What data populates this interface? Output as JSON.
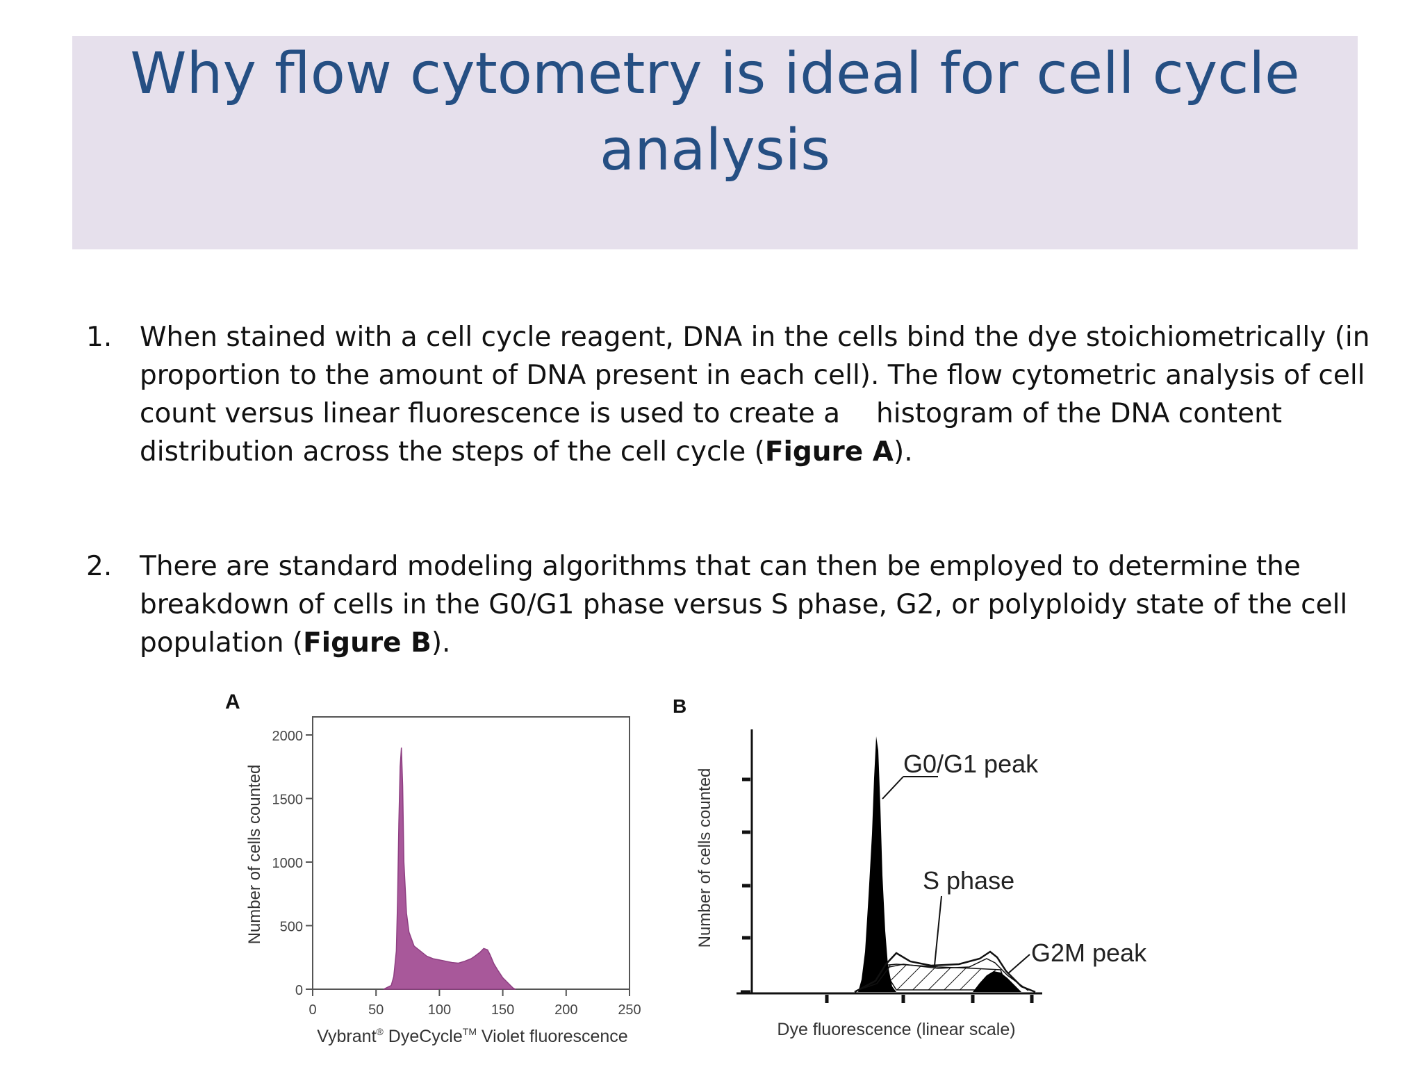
{
  "slide": {
    "title_line1": "Why flow cytometry is ideal for cell cycle",
    "title_line2": "analysis"
  },
  "items": [
    {
      "number": "1.",
      "line1": "When stained with a cell cycle reagent, DNA in the cells bind the dye stoichiometrically (in",
      "line2": "proportion to the amount of DNA present in each cell). The flow cytometric analysis of cell",
      "line3a": "count versus linear fluorescence is used to create a",
      "line3b": "histogram of the DNA content",
      "line4_pre": "distribution across the steps of the cell cycle (",
      "line4_bold": "Figure  A",
      "line4_post": ")."
    },
    {
      "number": "2.",
      "line1": "There are standard modeling algorithms that can then be employed to determine the",
      "line2": "breakdown of cells in the G0/G1 phase versus S phase, G2, or polyploidy state of the cell",
      "line3_pre": "population (",
      "line3_bold": "Figure B",
      "line3_post": ")."
    }
  ],
  "chart_data": [
    {
      "type": "area",
      "panel_label": "A",
      "ylabel": "Number of cells counted",
      "xlabel_pre": "Vybrant",
      "xlabel_sup1": "®",
      "xlabel_mid": " DyeCycle",
      "xlabel_sup2": "TM",
      "xlabel_post": " Violet fluorescence",
      "xlim": [
        0,
        250
      ],
      "ylim": [
        0,
        2000
      ],
      "x_ticks": [
        0,
        50,
        100,
        150,
        200,
        250
      ],
      "y_ticks": [
        0,
        500,
        1000,
        1500,
        2000
      ],
      "fill_color": "#a8589a",
      "series": [
        {
          "x": [
            56,
            62,
            64,
            66,
            67,
            68,
            69,
            70,
            71,
            72,
            74,
            76,
            80,
            85,
            90,
            95,
            100,
            105,
            110,
            115,
            120,
            125,
            128,
            132,
            135,
            138,
            140,
            143,
            146,
            150,
            155,
            158,
            160
          ],
          "values": [
            0,
            30,
            100,
            300,
            700,
            1300,
            1750,
            1900,
            1600,
            1000,
            600,
            450,
            340,
            300,
            260,
            240,
            230,
            220,
            210,
            205,
            220,
            240,
            260,
            290,
            320,
            310,
            270,
            200,
            150,
            90,
            40,
            10,
            0
          ]
        }
      ]
    },
    {
      "type": "area",
      "panel_label": "B",
      "ylabel": "Number of cells counted",
      "xlabel": "Dye fluorescence (linear scale)",
      "annotations": [
        "G0/G1 peak",
        "S phase",
        "G2M peak"
      ]
    }
  ]
}
